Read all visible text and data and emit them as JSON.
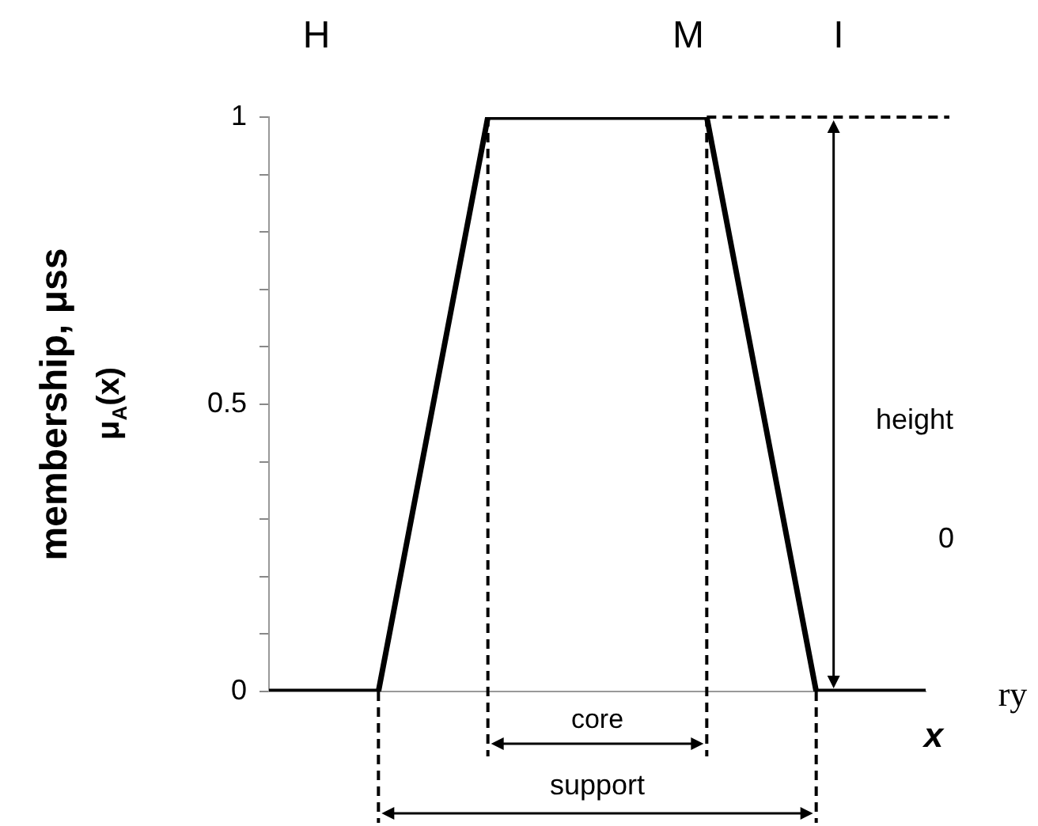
{
  "chart_data": {
    "type": "line",
    "ylabel": "membership, μss",
    "categories": [
      null,
      null,
      null,
      null,
      null,
      null,
      null
    ],
    "series": [
      {
        "color": "#000000",
        "values": [
          0,
          0,
          1,
          1,
          1,
          0,
          0
        ]
      }
    ],
    "ylim": [
      0,
      1
    ],
    "yticks": [
      0,
      {
        "value": 0.1,
        "label": null
      },
      {
        "value": 0.2,
        "label": null
      },
      {
        "value": 0.3,
        "label": null
      },
      {
        "value": 0.4,
        "label": null
      },
      0.5,
      {
        "value": 0.6,
        "label": null
      },
      {
        "value": 0.7,
        "label": null
      },
      {
        "value": 0.8,
        "label": null
      },
      {
        "value": 0.9,
        "label": null
      },
      1
    ],
    "tick_labels": "y",
    "marker": "none",
    "line_style": "solid",
    "legend": false,
    "annotations": [
      "H",
      "M",
      "I",
      "μ$_{A}$(x)",
      "height",
      "0",
      "ry",
      "x",
      "core",
      "support"
    ]
  }
}
